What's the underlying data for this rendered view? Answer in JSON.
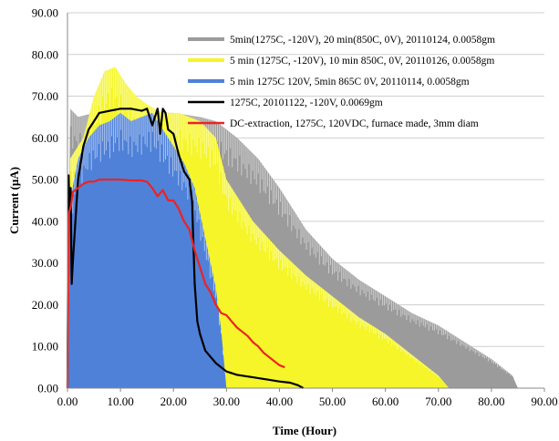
{
  "chart_data": {
    "type": "area",
    "title": "",
    "xlabel": "Time (Hour)",
    "ylabel": "Current (μA)",
    "xlim": [
      0,
      90
    ],
    "ylim": [
      0,
      90
    ],
    "x_ticks": [
      "0.00",
      "10.00",
      "20.00",
      "30.00",
      "40.00",
      "50.00",
      "60.00",
      "70.00",
      "80.00",
      "90.00"
    ],
    "y_ticks": [
      "0.00",
      "10.00",
      "20.00",
      "30.00",
      "40.00",
      "50.00",
      "60.00",
      "70.00",
      "80.00",
      "90.00"
    ],
    "grid": "horizontal",
    "legend_position": "top-right",
    "series": [
      {
        "name": "5min(1275C, -120V), 20 min(850C, 0V), 20110124, 0.0058gm",
        "style": "filled-spikes",
        "color": "#9b9b9b",
        "x": [
          0,
          0.5,
          2,
          5,
          10,
          15,
          20,
          25,
          28,
          32,
          36,
          40,
          45,
          50,
          55,
          60,
          65,
          70,
          75,
          80,
          84,
          85
        ],
        "y": [
          0,
          67,
          65,
          66,
          65,
          66,
          66,
          65,
          64,
          60,
          55,
          48,
          38,
          31,
          26,
          22,
          18,
          15,
          11,
          7,
          3,
          0
        ]
      },
      {
        "name": "5 min (1275C, -120V), 10 min 850C, 0V, 20110126, 0.0058gm",
        "style": "filled-spikes",
        "color": "#f5f52a",
        "x": [
          0,
          0.5,
          3,
          5,
          7,
          9,
          11,
          13,
          15,
          18,
          21,
          25,
          28,
          30,
          35,
          40,
          45,
          50,
          55,
          60,
          65,
          70,
          72
        ],
        "y": [
          0,
          55,
          60,
          70,
          76,
          77,
          73,
          70,
          68,
          66,
          66,
          64,
          60,
          50,
          40,
          33,
          27,
          22,
          17,
          13,
          8,
          3,
          0
        ]
      },
      {
        "name": "5 min 1275C 120V, 5min 865C 0V, 20110114, 0.0058gm",
        "style": "filled-spikes",
        "color": "#4f81d9",
        "x": [
          0,
          0.5,
          2,
          4,
          6,
          8,
          10,
          12,
          14,
          16,
          18,
          20,
          22,
          24,
          26,
          28,
          29,
          30
        ],
        "y": [
          0,
          45,
          55,
          60,
          63,
          64,
          66,
          64,
          65,
          66,
          62,
          58,
          54,
          48,
          36,
          24,
          14,
          0
        ]
      },
      {
        "name": "1275C, 20101122, -120V, 0.0069gm",
        "style": "line",
        "color": "#000000",
        "x": [
          0,
          0.2,
          0.4,
          0.6,
          0.8,
          1,
          2,
          3,
          4,
          5,
          6,
          8,
          10,
          12,
          14,
          15,
          16,
          17,
          17.5,
          18,
          18.5,
          19,
          20,
          21,
          22,
          23,
          23.5,
          24,
          24.5,
          25,
          26,
          28,
          30,
          32,
          35,
          38,
          40,
          42,
          43.5,
          44.5
        ],
        "y": [
          0,
          51,
          42,
          48,
          25,
          30,
          50,
          58,
          62,
          64,
          66,
          66.5,
          67,
          67,
          66.5,
          67,
          63,
          67,
          61,
          67,
          66,
          62,
          61,
          56,
          52,
          50,
          45,
          25,
          16,
          13,
          9,
          6,
          4,
          3.2,
          2.6,
          2,
          1.6,
          1.3,
          0.7,
          0
        ]
      },
      {
        "name": "DC-extraction, 1275C, 120VDC, furnace made, 3mm diam",
        "style": "line",
        "color": "#ee2222",
        "x": [
          0,
          0.3,
          0.7,
          1,
          2,
          3,
          4,
          5,
          6,
          8,
          10,
          12,
          14,
          15,
          16,
          17,
          18,
          19,
          20,
          21,
          22,
          23,
          24,
          25,
          26,
          27,
          28,
          29,
          30,
          31,
          32,
          33,
          34,
          35,
          36,
          37,
          38,
          39,
          40,
          41
        ],
        "y": [
          0,
          42,
          44,
          47,
          48,
          49,
          49.5,
          49.5,
          50,
          50,
          50,
          49.8,
          49.8,
          49.5,
          48,
          46,
          47.5,
          45,
          45,
          43,
          40,
          38,
          33,
          29,
          25,
          23,
          20,
          18,
          17.5,
          16,
          14.5,
          13.5,
          12.5,
          11,
          10,
          8.5,
          7.5,
          6.5,
          5.5,
          5
        ]
      }
    ]
  }
}
